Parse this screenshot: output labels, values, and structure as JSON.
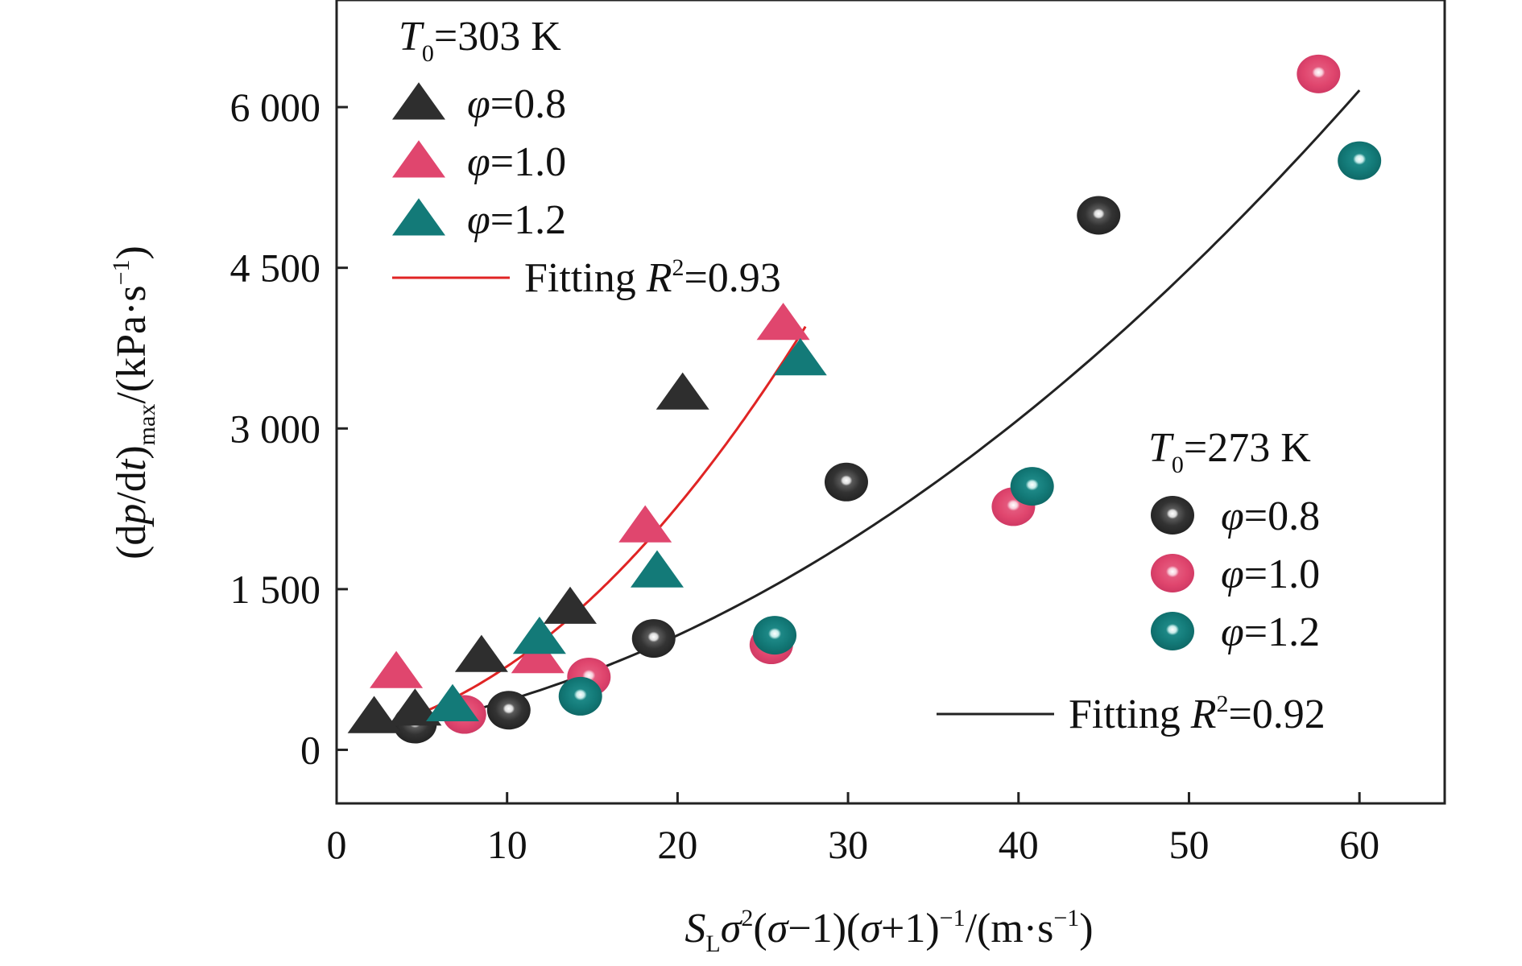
{
  "chart_data": {
    "type": "scatter",
    "xlabel": {
      "S": "S",
      "L": "L",
      "sigma2": "σ",
      "two": "2",
      "mid1": "(",
      "sigma_a": "σ",
      "mid2": "−1)(",
      "sigma_b": "σ",
      "mid3": "+1)",
      "exp": "−1",
      "unit_open": "/(m·s",
      "unit_exp": "−1",
      "unit_close": ")"
    },
    "ylabel": {
      "open": "(d",
      "p": "p",
      "slash": "/d",
      "t": "t",
      "close": ")",
      "sub": "max",
      "unit": "/(kPa·s",
      "unit_exp": "−1",
      "unit_close": ")"
    },
    "xlim": [
      0,
      65
    ],
    "ylim": [
      -500,
      7000
    ],
    "x_ticks": [
      0,
      10,
      20,
      30,
      40,
      50,
      60
    ],
    "x_tick_labels": [
      "0",
      "10",
      "20",
      "30",
      "40",
      "50",
      "60"
    ],
    "y_ticks": [
      0,
      1500,
      3000,
      4500,
      6000
    ],
    "y_tick_labels": [
      "0",
      "1 500",
      "3 000",
      "4 500",
      "6 000"
    ],
    "colors": {
      "phi08": "#2e2e2e",
      "phi10": "#e0466e",
      "phi12": "#137a78",
      "fit303": "#e02424",
      "fit273": "#222222"
    },
    "groups": [
      {
        "title": "=303 K",
        "T_symbol": "T",
        "T_sub": "0",
        "marker": "triangle",
        "series": [
          {
            "name": "=0.8",
            "phi": "φ",
            "color_key": "phi08",
            "points": [
              [
                2.2,
                310
              ],
              [
                4.6,
                380
              ],
              [
                8.5,
                880
              ],
              [
                13.7,
                1330
              ],
              [
                20.3,
                3330
              ]
            ]
          },
          {
            "name": "=1.0",
            "phi": "φ",
            "color_key": "phi10",
            "points": [
              [
                3.5,
                730
              ],
              [
                11.8,
                870
              ],
              [
                18.1,
                2090
              ],
              [
                26.2,
                3980
              ]
            ]
          },
          {
            "name": "=1.2",
            "phi": "φ",
            "color_key": "phi12",
            "points": [
              [
                6.8,
                420
              ],
              [
                11.9,
                1050
              ],
              [
                18.8,
                1670
              ],
              [
                27.2,
                3650
              ]
            ]
          }
        ],
        "fit": {
          "label_prefix": "Fitting ",
          "R": "R",
          "R_exp": "2",
          "label_suffix": "=0.93",
          "color_key": "fit303",
          "x_range": [
            2.2,
            27.5
          ],
          "coeffs": [
            125.55,
            23.14,
            4.217
          ]
        }
      },
      {
        "title": "=273 K",
        "T_symbol": "T",
        "T_sub": "0",
        "marker": "sphere",
        "series": [
          {
            "name": "=0.8",
            "phi": "φ",
            "color_key": "phi08",
            "points": [
              [
                4.6,
                240
              ],
              [
                10.1,
                370
              ],
              [
                18.6,
                1040
              ],
              [
                29.9,
                2500
              ],
              [
                44.7,
                4990
              ]
            ]
          },
          {
            "name": "=1.0",
            "phi": "φ",
            "color_key": "phi10",
            "points": [
              [
                7.5,
                330
              ],
              [
                14.8,
                680
              ],
              [
                25.5,
                980
              ],
              [
                39.7,
                2270
              ],
              [
                57.6,
                6310
              ]
            ]
          },
          {
            "name": "=1.2",
            "phi": "φ",
            "color_key": "phi12",
            "points": [
              [
                14.3,
                500
              ],
              [
                25.7,
                1070
              ],
              [
                40.8,
                2460
              ],
              [
                60.0,
                5500
              ]
            ]
          }
        ],
        "fit": {
          "label_prefix": "Fitting ",
          "R": "R",
          "R_exp": "2",
          "label_suffix": "=0.92",
          "color_key": "fit273",
          "x_range": [
            4.0,
            60.0
          ],
          "coeffs": [
            115.3,
            21.2,
            1.325
          ]
        }
      }
    ]
  }
}
